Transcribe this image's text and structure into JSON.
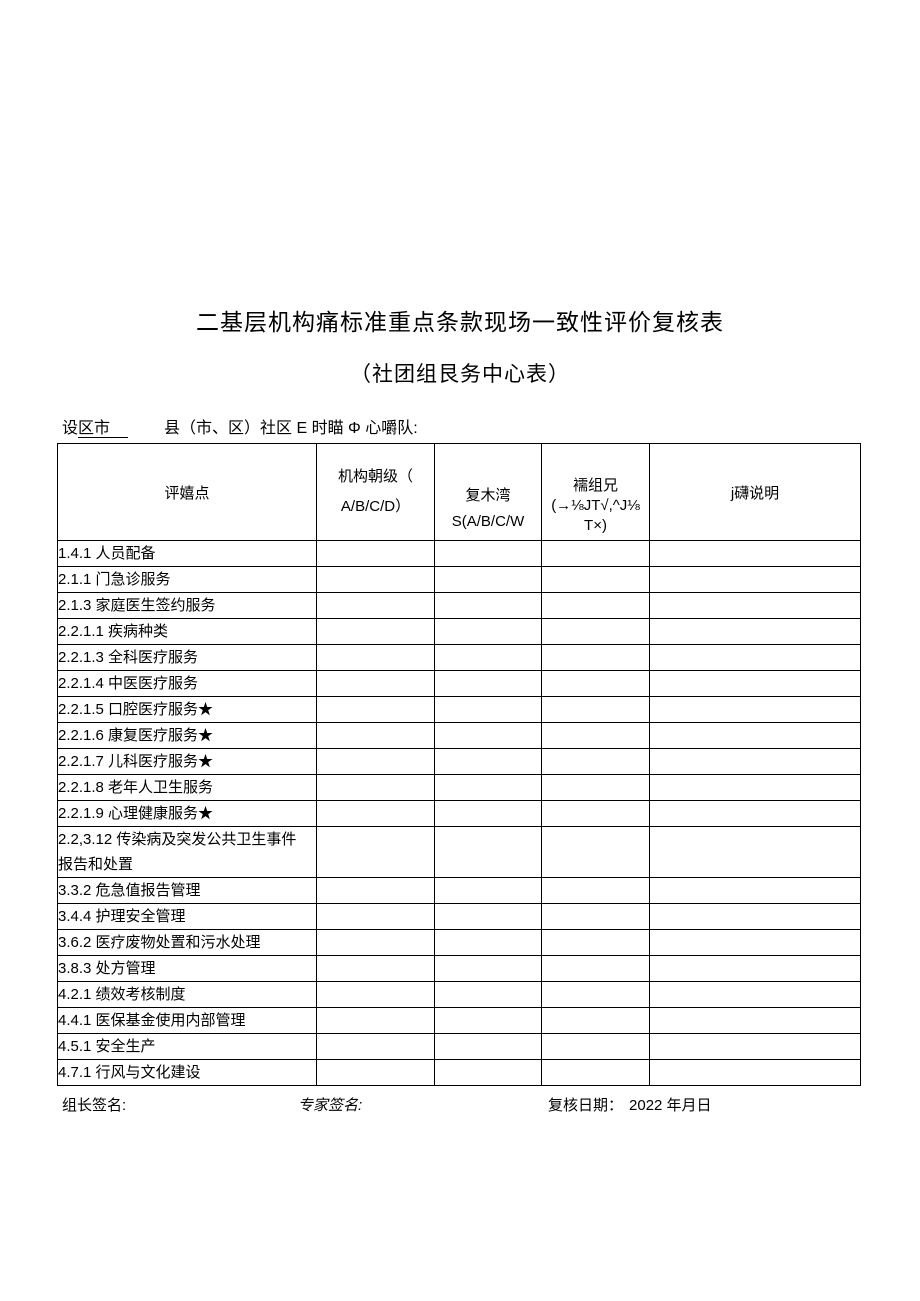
{
  "page": {
    "title": "二基层机构痛标准重点条款现场一致性评价复核表",
    "subtitle": "（社团组艮务中心表）"
  },
  "region_line": {
    "prefix": "设",
    "blank": "区市",
    "rest": "县（市、区）社区 E 时瞄 Φ 心嚼队:"
  },
  "table": {
    "headers": [
      "评嬉点",
      "机构朝级（\nA/B/C/D）",
      "复木湾\nS(A/B/C/W",
      "襦组兄\n(→⅛JT√,^J⅛\nT×)",
      "j礴说明"
    ],
    "rows": [
      "1.4.1 人员配备",
      "2.1.1 门急诊服务",
      "2.1.3 家庭医生签约服务",
      "2.2.1.1 疾病种类",
      "2.2.1.3 全科医疗服务",
      "2.2.1.4 中医医疗服务",
      "2.2.1.5 口腔医疗服务★",
      "2.2.1.6 康复医疗服务★",
      "2.2.1.7 儿科医疗服务★",
      "2.2.1.8 老年人卫生服务",
      "2.2.1.9 心理健康服务★",
      "2.2,3.12 传染病及突发公共卫生事件\n报告和处置",
      "3.3.2 危急值报告管理",
      "3.4.4 护理安全管理",
      "3.6.2 医疗废物处置和污水处理",
      "3.8.3 处方管理",
      "4.2.1 绩效考核制度",
      "4.4.1 医保基金使用内部管理",
      "4.5.1 安全生产",
      "4.7.1 行风与文化建设"
    ]
  },
  "footer": {
    "leader_label": "组长签名:",
    "expert_label": "专家签名:",
    "date_label": "复核日期：",
    "date_value": "2022 年月日"
  }
}
